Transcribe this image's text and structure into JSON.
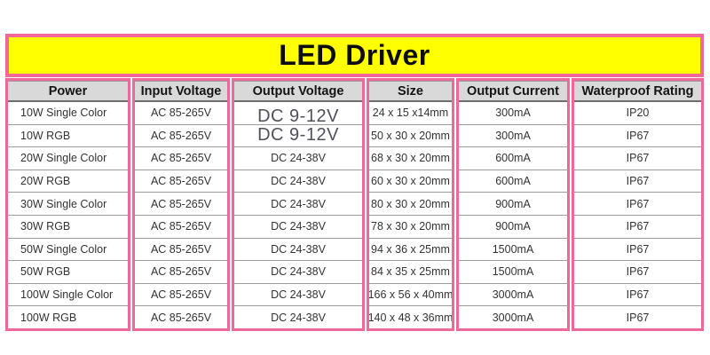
{
  "title": "LED Driver",
  "colors": {
    "accent_pink": "#f0689a",
    "title_yellow": "#ffff00",
    "header_gray": "#d9d9d9"
  },
  "table": {
    "columns": [
      {
        "key": "power",
        "label": "Power"
      },
      {
        "key": "input_voltage",
        "label": "Input Voltage"
      },
      {
        "key": "output_voltage",
        "label": "Output Voltage"
      },
      {
        "key": "size",
        "label": "Size"
      },
      {
        "key": "output_current",
        "label": "Output Current"
      },
      {
        "key": "waterproof",
        "label": "Waterproof Rating"
      }
    ],
    "rows": [
      {
        "power": "10W Single Color",
        "input_voltage": "AC 85-265V",
        "output_voltage": "DC 9-12V",
        "output_voltage_large": true,
        "size": "24 x 15 x14mm",
        "output_current": "300mA",
        "waterproof": "IP20"
      },
      {
        "power": "10W RGB",
        "input_voltage": "AC 85-265V",
        "output_voltage": "DC 9-12V",
        "output_voltage_large": true,
        "size": "50 x 30 x 20mm",
        "output_current": "300mA",
        "waterproof": "IP67"
      },
      {
        "power": "20W Single Color",
        "input_voltage": "AC 85-265V",
        "output_voltage": "DC 24-38V",
        "output_voltage_large": false,
        "size": "68 x 30 x 20mm",
        "output_current": "600mA",
        "waterproof": "IP67"
      },
      {
        "power": "20W RGB",
        "input_voltage": "AC 85-265V",
        "output_voltage": "DC 24-38V",
        "output_voltage_large": false,
        "size": "60 x 30 x 20mm",
        "output_current": "600mA",
        "waterproof": "IP67"
      },
      {
        "power": "30W Single Color",
        "input_voltage": "AC 85-265V",
        "output_voltage": "DC 24-38V",
        "output_voltage_large": false,
        "size": "80 x 30 x 20mm",
        "output_current": "900mA",
        "waterproof": "IP67"
      },
      {
        "power": "30W RGB",
        "input_voltage": "AC 85-265V",
        "output_voltage": "DC 24-38V",
        "output_voltage_large": false,
        "size": "78 x 30 x 20mm",
        "output_current": "900mA",
        "waterproof": "IP67"
      },
      {
        "power": "50W Single Color",
        "input_voltage": "AC 85-265V",
        "output_voltage": "DC 24-38V",
        "output_voltage_large": false,
        "size": "94 x 36 x 25mm",
        "output_current": "1500mA",
        "waterproof": "IP67"
      },
      {
        "power": "50W RGB",
        "input_voltage": "AC 85-265V",
        "output_voltage": "DC 24-38V",
        "output_voltage_large": false,
        "size": "84 x 35 x 25mm",
        "output_current": "1500mA",
        "waterproof": "IP67"
      },
      {
        "power": "100W Single Color",
        "input_voltage": "AC 85-265V",
        "output_voltage": "DC 24-38V",
        "output_voltage_large": false,
        "size": "166 x 56 x 40mm",
        "output_current": "3000mA",
        "waterproof": "IP67"
      },
      {
        "power": "100W RGB",
        "input_voltage": "AC 85-265V",
        "output_voltage": "DC 24-38V",
        "output_voltage_large": false,
        "size": "140 x 48 x 36mm",
        "output_current": "3000mA",
        "waterproof": "IP67"
      }
    ]
  }
}
